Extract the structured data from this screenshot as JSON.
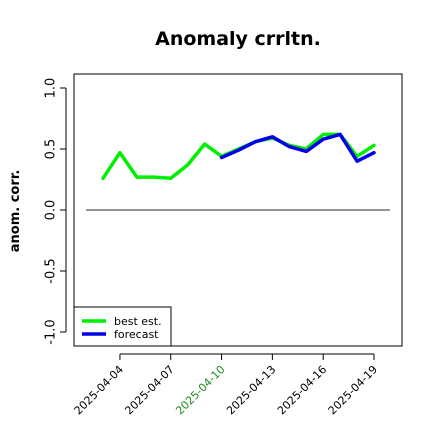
{
  "chart_data": {
    "type": "line",
    "title": "Anomaly crrltn.",
    "xlabel": "",
    "ylabel": "anom. corr.",
    "ylim": [
      -1.0,
      1.0
    ],
    "yticks": [
      "-1.0",
      "-0.5",
      "0.0",
      "0.5",
      "1.0"
    ],
    "x": [
      "2025-04-03",
      "2025-04-04",
      "2025-04-05",
      "2025-04-06",
      "2025-04-07",
      "2025-04-08",
      "2025-04-09",
      "2025-04-10",
      "2025-04-11",
      "2025-04-12",
      "2025-04-13",
      "2025-04-14",
      "2025-04-15",
      "2025-04-16",
      "2025-04-17",
      "2025-04-18",
      "2025-04-19"
    ],
    "xtick_labels": [
      {
        "date": "2025-04-04",
        "label": "2025-04-04",
        "color": "#000000"
      },
      {
        "date": "2025-04-07",
        "label": "2025-04-07",
        "color": "#000000"
      },
      {
        "date": "2025-04-10",
        "label": "2025-04-10",
        "color": "#228B22"
      },
      {
        "date": "2025-04-13",
        "label": "2025-04-13",
        "color": "#000000"
      },
      {
        "date": "2025-04-16",
        "label": "2025-04-16",
        "color": "#000000"
      },
      {
        "date": "2025-04-19",
        "label": "2025-04-19",
        "color": "#000000"
      }
    ],
    "reference_line": 0.0,
    "series": [
      {
        "name": "best est.",
        "color": "#00ee00",
        "values": [
          0.26,
          0.47,
          0.27,
          0.27,
          0.26,
          0.37,
          0.54,
          0.44,
          0.5,
          0.56,
          0.59,
          0.53,
          0.5,
          0.62,
          0.62,
          0.44,
          0.53
        ]
      },
      {
        "name": "forecast",
        "color": "#0000ee",
        "values": [
          null,
          null,
          null,
          null,
          null,
          null,
          null,
          0.43,
          0.49,
          0.56,
          0.6,
          0.52,
          0.48,
          0.58,
          0.62,
          0.4,
          0.47
        ]
      }
    ],
    "legend_position": "bottom-left",
    "grid": false
  }
}
